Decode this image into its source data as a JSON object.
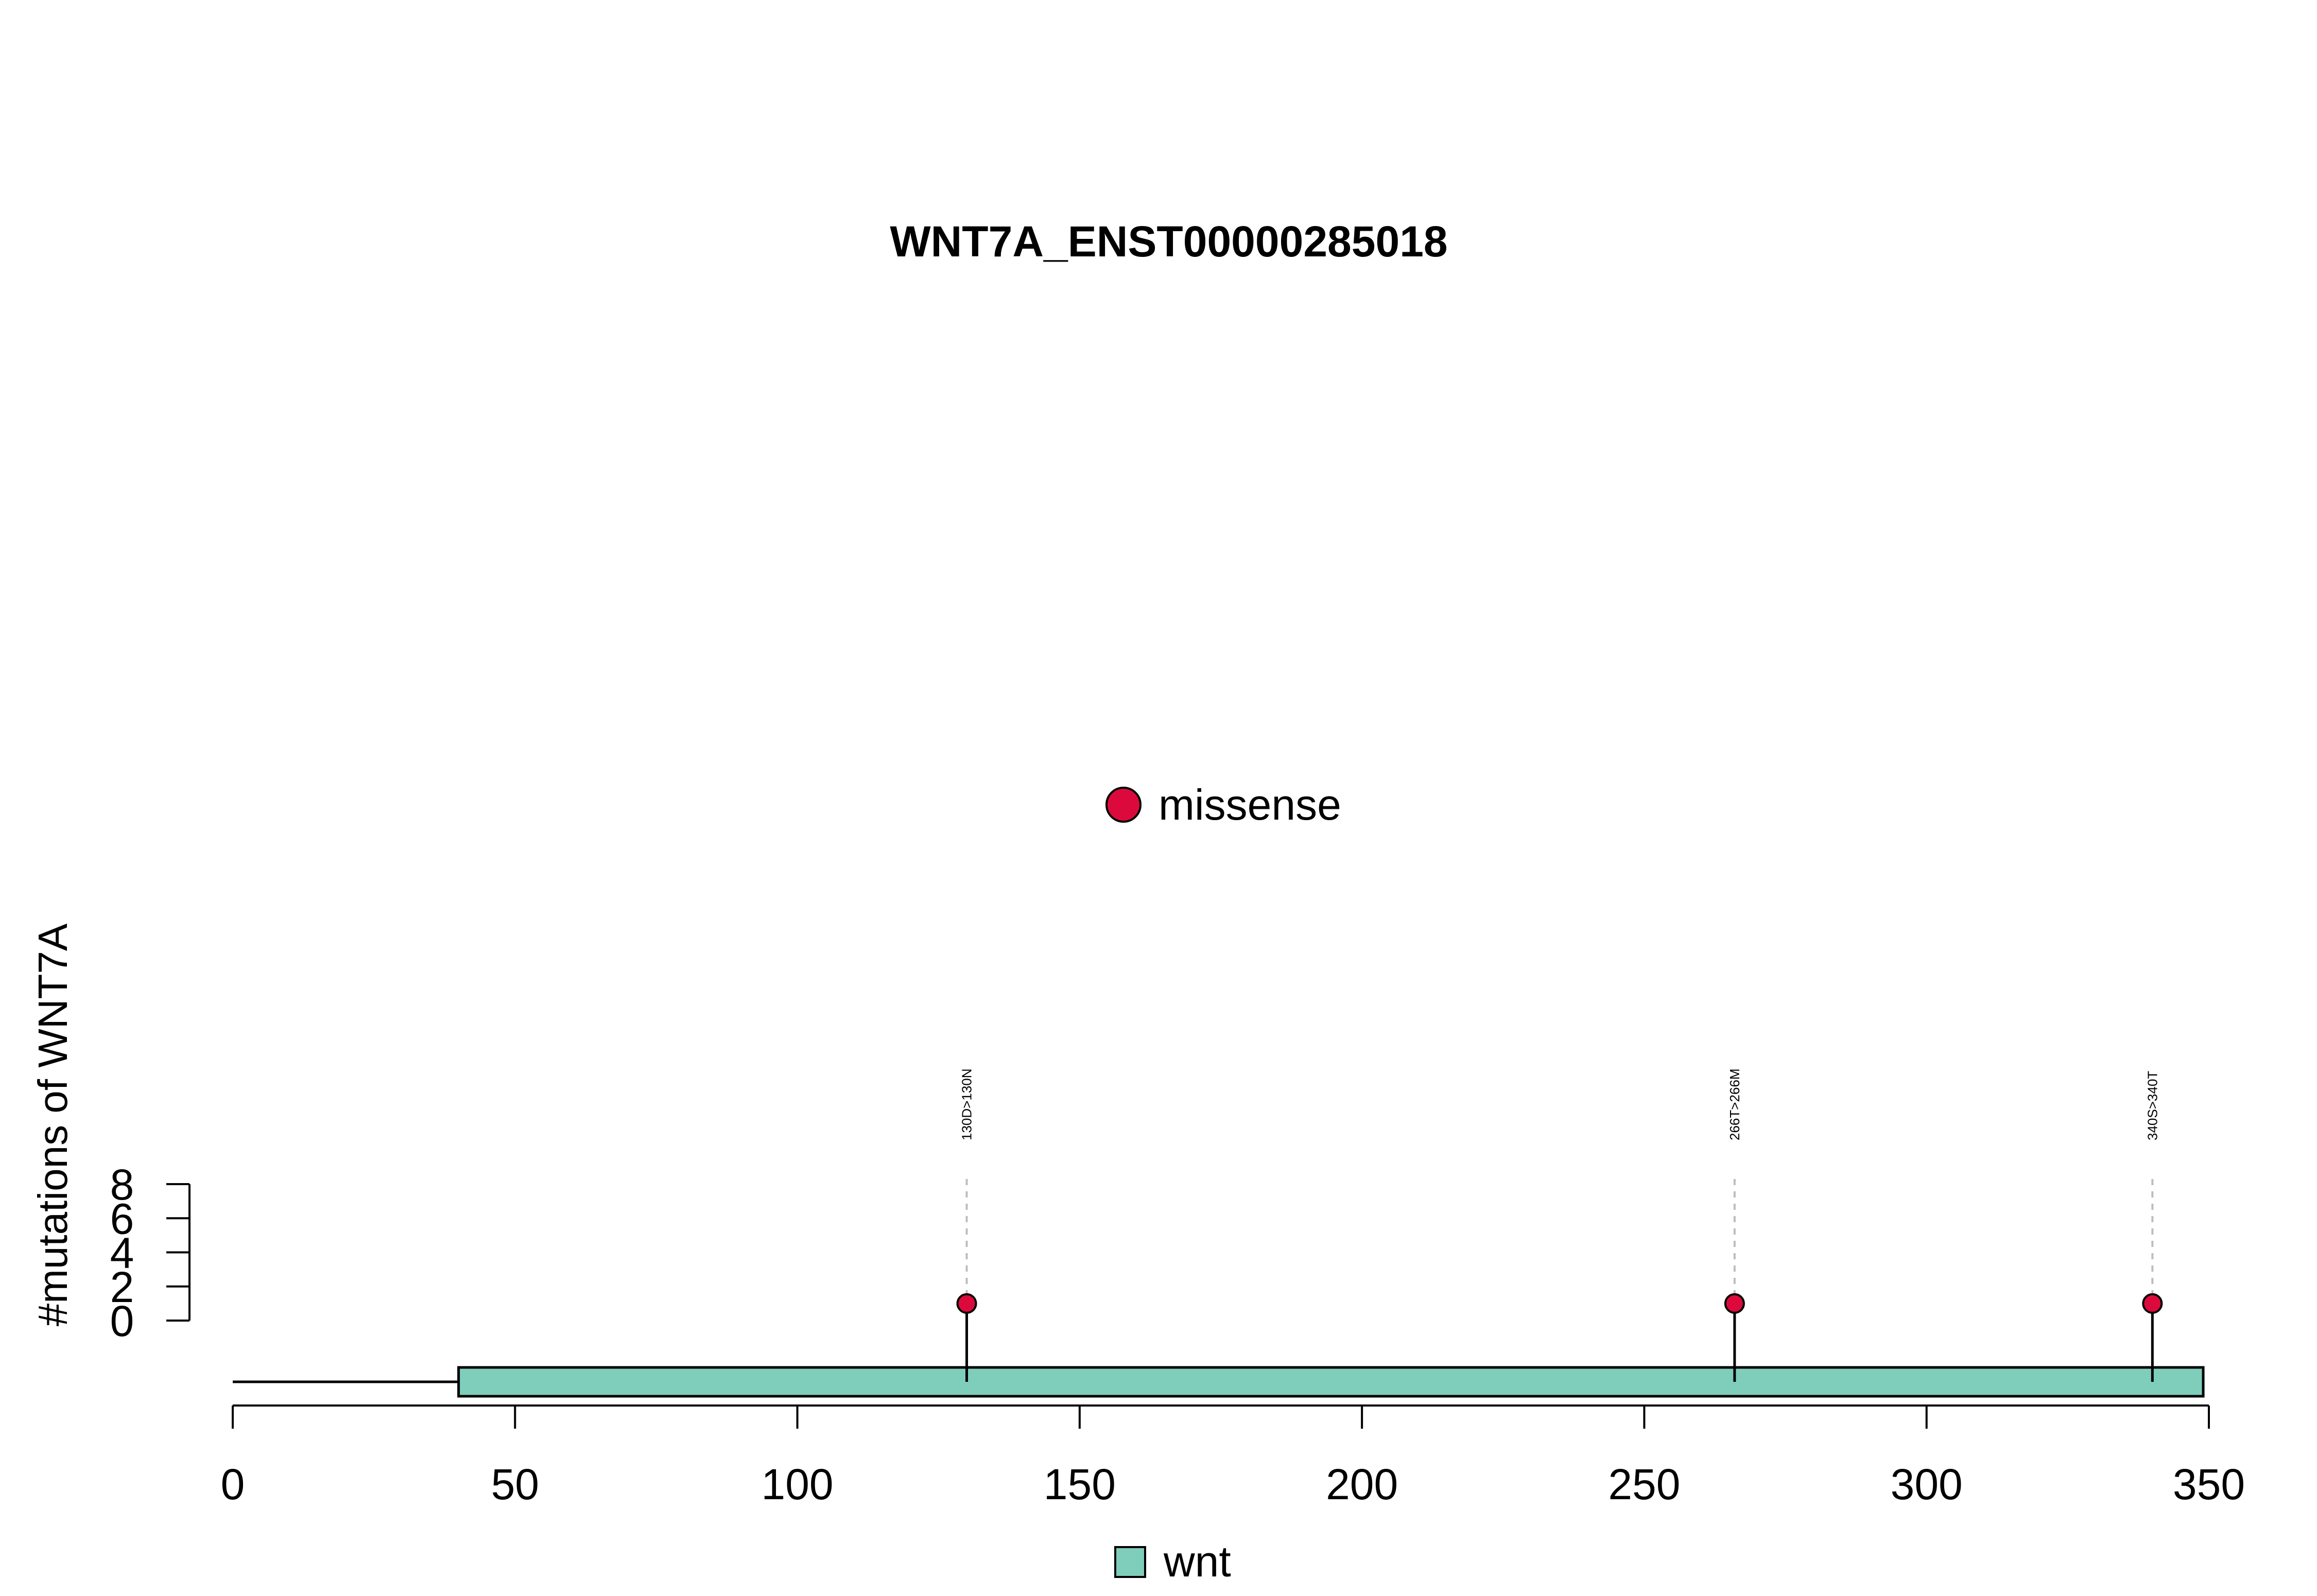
{
  "chart_data": {
    "type": "lollipop",
    "title": "WNT7A_ENST00000285018",
    "ylabel": "#mutations of WNT7A",
    "xlabel": "",
    "xlim": [
      0,
      350
    ],
    "x_ticks": [
      0,
      50,
      100,
      150,
      200,
      250,
      300,
      350
    ],
    "ylim": [
      0,
      8
    ],
    "y_ticks": [
      0,
      2,
      4,
      6,
      8
    ],
    "protein_length": 349,
    "domains": [
      {
        "name": "wnt",
        "start": 40,
        "end": 349,
        "color": "#7fcdbb"
      }
    ],
    "mutations": [
      {
        "position": 130,
        "label": "130D>130N",
        "type": "missense",
        "count": 1
      },
      {
        "position": 266,
        "label": "266T>266M",
        "type": "missense",
        "count": 1
      },
      {
        "position": 340,
        "label": "340S>340T",
        "type": "missense",
        "count": 1
      }
    ],
    "mutation_legend": [
      {
        "label": "missense",
        "color": "#dc0a3c"
      }
    ],
    "domain_legend": [
      {
        "label": "wnt",
        "color": "#7fcdbb"
      }
    ]
  }
}
